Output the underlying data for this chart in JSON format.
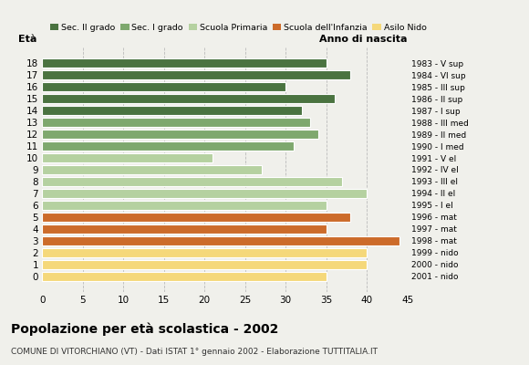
{
  "ages": [
    18,
    17,
    16,
    15,
    14,
    13,
    12,
    11,
    10,
    9,
    8,
    7,
    6,
    5,
    4,
    3,
    2,
    1,
    0
  ],
  "values": [
    35,
    38,
    30,
    36,
    32,
    33,
    34,
    31,
    21,
    27,
    37,
    40,
    35,
    38,
    35,
    44,
    40,
    40,
    35
  ],
  "right_labels": [
    "1983 - V sup",
    "1984 - VI sup",
    "1985 - III sup",
    "1986 - II sup",
    "1987 - I sup",
    "1988 - III med",
    "1989 - II med",
    "1990 - I med",
    "1991 - V el",
    "1992 - IV el",
    "1993 - III el",
    "1994 - II el",
    "1995 - I el",
    "1996 - mat",
    "1997 - mat",
    "1998 - mat",
    "1999 - nido",
    "2000 - nido",
    "2001 - nido"
  ],
  "colors": [
    "#4a7340",
    "#4a7340",
    "#4a7340",
    "#4a7340",
    "#4a7340",
    "#7ea86e",
    "#7ea86e",
    "#7ea86e",
    "#b5d1a0",
    "#b5d1a0",
    "#b5d1a0",
    "#b5d1a0",
    "#b5d1a0",
    "#cc6b2a",
    "#cc6b2a",
    "#cc6b2a",
    "#f5d87a",
    "#f5d87a",
    "#f5d87a"
  ],
  "legend_labels": [
    "Sec. II grado",
    "Sec. I grado",
    "Scuola Primaria",
    "Scuola dell'Infanzia",
    "Asilo Nido"
  ],
  "legend_colors": [
    "#4a7340",
    "#7ea86e",
    "#b5d1a0",
    "#cc6b2a",
    "#f5d87a"
  ],
  "title": "Popolazione per età scolastica - 2002",
  "subtitle": "COMUNE DI VITORCHIANO (VT) - Dati ISTAT 1° gennaio 2002 - Elaborazione TUTTITALIA.IT",
  "xlabel_eta": "Età",
  "xlabel_anno": "Anno di nascita",
  "xlim": [
    0,
    45
  ],
  "xticks": [
    0,
    5,
    10,
    15,
    20,
    25,
    30,
    35,
    40,
    45
  ],
  "grid_values": [
    5,
    10,
    15,
    20,
    25,
    30,
    35,
    40,
    45
  ],
  "background_color": "#f0f0eb"
}
